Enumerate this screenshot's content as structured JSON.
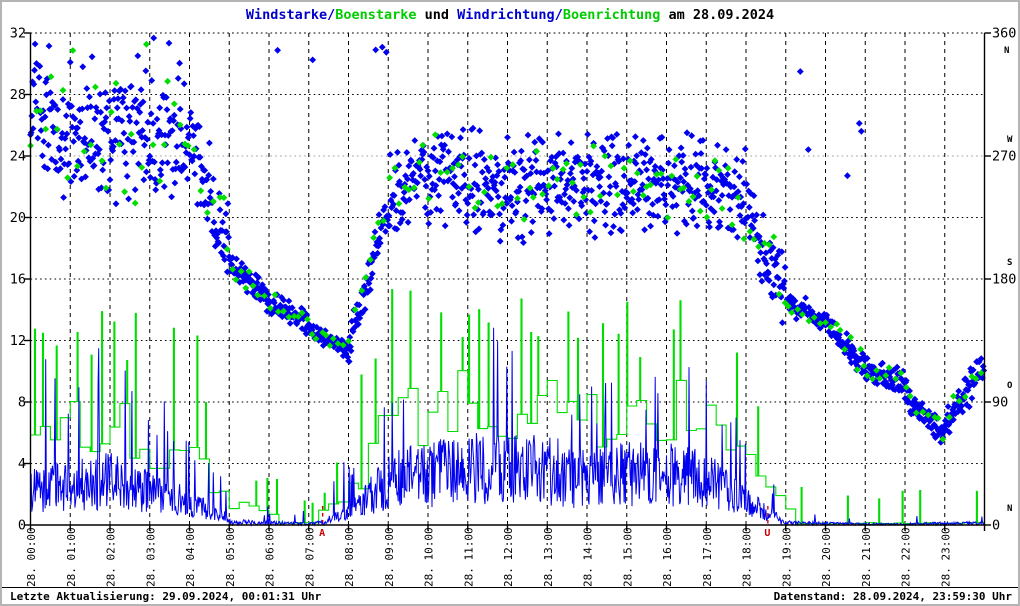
{
  "title": {
    "segments": [
      {
        "text": "Windstarke/",
        "color": "#0000cc"
      },
      {
        "text": "Boenstarke",
        "color": "#00cc00"
      },
      {
        "text": " und ",
        "color": "#000000"
      },
      {
        "text": "Windrichtung/",
        "color": "#0000cc"
      },
      {
        "text": "Boenrichtung",
        "color": "#00cc00"
      },
      {
        "text": " am 28.09.2024",
        "color": "#000000"
      }
    ]
  },
  "status_bar": {
    "left": "Letzte Aktualisierung: 29.09.2024, 00:01:31 Uhr",
    "right": "Datenstand: 28.09.2024, 23:59:30 Uhr"
  },
  "chart_data": {
    "type": "mixed",
    "title": "Windstarke/Boenstarke und Windrichtung/Boenrichtung am 28.09.2024",
    "legend_position": "none",
    "grid": true,
    "series": [
      {
        "name": "Windstarke",
        "type": "line",
        "color": "#0000ee",
        "axis": "left"
      },
      {
        "name": "Boenstarke",
        "type": "step",
        "color": "#00dd00",
        "axis": "left"
      },
      {
        "name": "Windrichtung",
        "type": "scatter",
        "marker": "diamond",
        "color": "#0000ee",
        "axis": "right"
      },
      {
        "name": "Boenrichtung",
        "type": "scatter",
        "marker": "diamond",
        "color": "#00dd00",
        "axis": "right"
      }
    ],
    "x_axis": {
      "range_hours": [
        0,
        24
      ],
      "labels": [
        "28. 00:00",
        "28. 01:00",
        "28. 02:00",
        "28. 03:00",
        "28. 04:00",
        "28. 05:00",
        "28. 06:00",
        "28. 07:00",
        "28. 08:00",
        "28. 09:00",
        "28. 10:00",
        "28. 11:00",
        "28. 12:00",
        "28. 13:00",
        "28. 14:00",
        "28. 15:00",
        "28. 16:00",
        "28. 17:00",
        "28. 18:00",
        "28. 19:00",
        "28. 20:00",
        "28. 21:00",
        "28. 22:00",
        "28. 23:00"
      ]
    },
    "y_left": {
      "range": [
        0,
        32
      ],
      "ticks": [
        0,
        4,
        8,
        12,
        16,
        20,
        24,
        28,
        32
      ]
    },
    "y_right": {
      "range": [
        0,
        360
      ],
      "ticks": [
        {
          "value": 0,
          "letter": "N",
          "letter_pos": "above"
        },
        {
          "value": 90,
          "letter": "O",
          "letter_pos": "above"
        },
        {
          "value": 180,
          "letter": "S",
          "letter_pos": "above"
        },
        {
          "value": 270,
          "letter": "W",
          "letter_pos": "above"
        },
        {
          "value": 360,
          "letter": "N",
          "letter_pos": "below"
        }
      ]
    },
    "annotations": [
      {
        "type": "sunrise",
        "letter": "A",
        "hour": 7.35,
        "color": "#cc0000"
      },
      {
        "type": "sunset",
        "letter": "U",
        "hour": 18.55,
        "color": "#cc0000"
      }
    ],
    "hourly": {
      "columns": [
        "hour",
        "wind_mean",
        "wind_max",
        "gust_mean",
        "gust_max",
        "dir_start_deg",
        "dir_end_deg",
        "dir_spread_deg",
        "outlier_frac",
        "outlier_lo_deg",
        "outlier_hi_deg"
      ],
      "rows": [
        [
          0,
          3.0,
          14.0,
          6.5,
          13.0,
          300,
          288,
          40,
          0.06,
          330,
          358
        ],
        [
          1,
          3.5,
          9.0,
          7.0,
          13.5,
          288,
          280,
          42,
          0.06,
          330,
          358
        ],
        [
          2,
          4.0,
          13.5,
          7.5,
          15.2,
          280,
          278,
          42,
          0.05,
          330,
          358
        ],
        [
          3,
          3.0,
          9.0,
          6.0,
          13.0,
          282,
          285,
          38,
          0.05,
          330,
          358
        ],
        [
          4,
          2.0,
          6.5,
          4.5,
          13.0,
          285,
          205,
          28,
          0.04,
          330,
          358
        ],
        [
          5,
          0.6,
          2.5,
          1.5,
          3.2,
          192,
          166,
          10,
          0.02,
          335,
          355
        ],
        [
          6,
          0.4,
          1.8,
          1.0,
          3.0,
          164,
          148,
          8,
          0.02,
          335,
          355
        ],
        [
          7,
          0.2,
          1.0,
          0.5,
          1.5,
          143,
          128,
          5,
          0.01,
          335,
          355
        ],
        [
          8,
          1.0,
          4.5,
          2.5,
          8.0,
          130,
          235,
          14,
          0.01,
          335,
          355
        ],
        [
          9,
          4.0,
          9.0,
          8.0,
          16.0,
          243,
          255,
          32,
          0,
          0,
          0
        ],
        [
          10,
          4.5,
          9.5,
          8.5,
          14.5,
          255,
          250,
          32,
          0,
          0,
          0
        ],
        [
          11,
          5.0,
          11.0,
          9.0,
          14.0,
          250,
          245,
          32,
          0,
          0,
          0
        ],
        [
          12,
          5.0,
          14.0,
          9.0,
          15.5,
          245,
          250,
          33,
          0,
          0,
          0
        ],
        [
          13,
          5.0,
          10.0,
          9.0,
          16.0,
          250,
          252,
          32,
          0,
          0,
          0
        ],
        [
          14,
          4.0,
          9.0,
          7.5,
          13.0,
          255,
          250,
          35,
          0,
          0,
          0
        ],
        [
          15,
          4.5,
          10.0,
          8.0,
          14.5,
          250,
          252,
          32,
          0,
          0,
          0
        ],
        [
          16,
          4.5,
          10.5,
          8.5,
          15.0,
          253,
          250,
          32,
          0,
          0,
          0
        ],
        [
          17,
          4.0,
          11.0,
          8.0,
          16.0,
          250,
          240,
          32,
          0,
          0,
          0
        ],
        [
          18,
          2.0,
          6.5,
          4.5,
          10.0,
          228,
          170,
          24,
          0,
          0,
          0
        ],
        [
          19,
          0.4,
          1.6,
          1.0,
          2.5,
          163,
          150,
          8,
          0.06,
          235,
          345
        ],
        [
          20,
          0.3,
          1.2,
          0.8,
          2.4,
          148,
          116,
          8,
          0.05,
          235,
          345
        ],
        [
          21,
          0.2,
          0.9,
          0.5,
          1.6,
          113,
          104,
          8,
          0,
          0,
          0
        ],
        [
          22,
          0.2,
          0.9,
          0.5,
          2.4,
          96,
          66,
          10,
          0,
          0,
          0
        ],
        [
          23,
          0.3,
          1.2,
          0.8,
          2.2,
          72,
          118,
          12,
          0,
          0,
          0
        ]
      ]
    },
    "colors": {
      "wind": "#0000ee",
      "gust": "#00dd00",
      "grid": "#000000",
      "grid_270_line": "#9a9a9a",
      "sun_marker": "#cc0000",
      "frame": "#000000"
    }
  }
}
